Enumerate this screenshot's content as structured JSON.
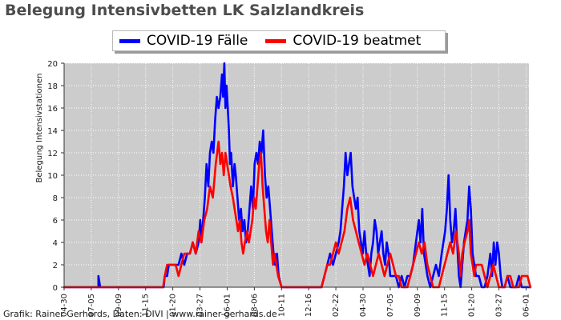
{
  "chart_data": {
    "type": "line",
    "title": "Belegung Intensivbetten LK Salzlandkreis",
    "ylabel": "Belegung Intensivstationen",
    "xlabel": "",
    "ylim": [
      0,
      20
    ],
    "yticks": [
      0,
      2,
      4,
      6,
      8,
      10,
      12,
      14,
      16,
      18,
      20
    ],
    "xticks": [
      "04-30",
      "07-05",
      "09-09",
      "11-15",
      "01-20",
      "03-27",
      "06-01",
      "08-06",
      "10-11",
      "12-16",
      "02-22",
      "04-30",
      "07-05",
      "09-09",
      "11-15",
      "01-20",
      "03-27",
      "06-01"
    ],
    "grid": true,
    "legend_position": "top",
    "plot_background": "#cccccc",
    "series": [
      {
        "name": "COVID-19 Fälle",
        "color": "#0000ff",
        "points": [
          [
            0,
            0
          ],
          [
            6,
            0
          ],
          [
            6,
            1
          ],
          [
            6.3,
            0
          ],
          [
            12,
            0
          ],
          [
            17.4,
            0
          ],
          [
            17.6,
            1
          ],
          [
            18,
            1
          ],
          [
            18.3,
            2
          ],
          [
            20,
            2
          ],
          [
            20.5,
            3
          ],
          [
            21,
            2
          ],
          [
            21.5,
            3
          ],
          [
            22,
            3
          ],
          [
            22.5,
            4
          ],
          [
            23,
            3
          ],
          [
            23.5,
            4
          ],
          [
            23.8,
            6
          ],
          [
            24,
            4
          ],
          [
            24.3,
            6
          ],
          [
            24.6,
            8
          ],
          [
            24.9,
            11
          ],
          [
            25.2,
            9
          ],
          [
            25.5,
            12
          ],
          [
            25.8,
            13
          ],
          [
            26.1,
            12
          ],
          [
            26.4,
            15
          ],
          [
            26.7,
            17
          ],
          [
            27,
            16
          ],
          [
            27.3,
            17
          ],
          [
            27.6,
            19
          ],
          [
            27.8,
            17
          ],
          [
            28,
            20
          ],
          [
            28.2,
            16
          ],
          [
            28.4,
            18
          ],
          [
            28.6,
            16
          ],
          [
            28.8,
            14
          ],
          [
            29,
            11
          ],
          [
            29.2,
            12
          ],
          [
            29.5,
            9
          ],
          [
            29.8,
            11
          ],
          [
            30,
            10
          ],
          [
            30.3,
            8
          ],
          [
            30.6,
            6
          ],
          [
            30.9,
            7
          ],
          [
            31.2,
            5
          ],
          [
            31.5,
            6
          ],
          [
            31.8,
            4
          ],
          [
            32.1,
            5
          ],
          [
            32.4,
            7
          ],
          [
            32.7,
            9
          ],
          [
            33,
            7
          ],
          [
            33.3,
            11
          ],
          [
            33.6,
            12
          ],
          [
            33.9,
            11
          ],
          [
            34.2,
            13
          ],
          [
            34.5,
            12
          ],
          [
            34.8,
            14
          ],
          [
            35.1,
            10
          ],
          [
            35.4,
            8
          ],
          [
            35.7,
            9
          ],
          [
            36,
            7
          ],
          [
            36.3,
            5
          ],
          [
            36.6,
            3
          ],
          [
            36.9,
            2
          ],
          [
            37.2,
            3
          ],
          [
            37.5,
            1
          ],
          [
            38,
            0
          ],
          [
            45,
            0
          ],
          [
            45.5,
            1
          ],
          [
            46,
            2
          ],
          [
            46.5,
            3
          ],
          [
            47,
            2
          ],
          [
            47.5,
            3
          ],
          [
            48,
            4
          ],
          [
            48.3,
            5
          ],
          [
            48.6,
            7
          ],
          [
            48.9,
            9
          ],
          [
            49.2,
            12
          ],
          [
            49.5,
            10
          ],
          [
            49.8,
            11
          ],
          [
            50.1,
            12
          ],
          [
            50.4,
            9
          ],
          [
            50.7,
            8
          ],
          [
            51,
            7
          ],
          [
            51.3,
            8
          ],
          [
            51.6,
            5
          ],
          [
            51.9,
            4
          ],
          [
            52.2,
            3
          ],
          [
            52.5,
            5
          ],
          [
            52.8,
            3
          ],
          [
            53.1,
            2
          ],
          [
            53.4,
            1
          ],
          [
            53.7,
            3
          ],
          [
            54,
            4
          ],
          [
            54.3,
            6
          ],
          [
            54.6,
            5
          ],
          [
            54.9,
            3
          ],
          [
            55.2,
            4
          ],
          [
            55.5,
            5
          ],
          [
            55.8,
            3
          ],
          [
            56.1,
            2
          ],
          [
            56.4,
            4
          ],
          [
            56.7,
            3
          ],
          [
            57,
            1
          ],
          [
            57.5,
            1
          ],
          [
            58,
            1
          ],
          [
            58.5,
            0
          ],
          [
            59,
            1
          ],
          [
            59.5,
            0
          ],
          [
            60,
            1
          ],
          [
            60.5,
            1
          ],
          [
            61,
            2
          ],
          [
            61.5,
            4
          ],
          [
            62,
            6
          ],
          [
            62.3,
            4
          ],
          [
            62.6,
            7
          ],
          [
            62.9,
            3
          ],
          [
            63.2,
            2
          ],
          [
            63.5,
            1
          ],
          [
            64,
            0
          ],
          [
            64.5,
            1
          ],
          [
            65,
            2
          ],
          [
            65.5,
            1
          ],
          [
            66,
            3
          ],
          [
            66.3,
            4
          ],
          [
            66.6,
            5
          ],
          [
            66.9,
            7
          ],
          [
            67.2,
            10
          ],
          [
            67.5,
            6
          ],
          [
            67.8,
            4
          ],
          [
            68.1,
            5
          ],
          [
            68.4,
            7
          ],
          [
            68.7,
            4
          ],
          [
            69,
            1
          ],
          [
            69.3,
            0
          ],
          [
            69.6,
            2
          ],
          [
            69.9,
            4
          ],
          [
            70.2,
            5
          ],
          [
            70.5,
            6
          ],
          [
            70.8,
            9
          ],
          [
            71.1,
            7
          ],
          [
            71.4,
            3
          ],
          [
            71.7,
            2
          ],
          [
            72,
            1
          ],
          [
            72.5,
            1
          ],
          [
            73,
            0
          ],
          [
            73.5,
            0
          ],
          [
            74,
            1
          ],
          [
            74.5,
            3
          ],
          [
            74.8,
            1
          ],
          [
            75.1,
            4
          ],
          [
            75.4,
            2
          ],
          [
            75.7,
            4
          ],
          [
            76,
            3
          ],
          [
            76.3,
            1
          ],
          [
            76.6,
            0
          ],
          [
            77,
            0
          ],
          [
            77.5,
            1
          ],
          [
            78,
            0
          ],
          [
            79,
            0
          ],
          [
            79.5,
            1
          ],
          [
            80,
            0
          ],
          [
            81.5,
            0
          ]
        ]
      },
      {
        "name": "COVID-19 beatmet",
        "color": "#ff0000",
        "points": [
          [
            0,
            0
          ],
          [
            12,
            0
          ],
          [
            17.3,
            0
          ],
          [
            17.6,
            1
          ],
          [
            18,
            2
          ],
          [
            19.5,
            2
          ],
          [
            20,
            1
          ],
          [
            20.5,
            2
          ],
          [
            21,
            3
          ],
          [
            22,
            3
          ],
          [
            22.5,
            4
          ],
          [
            23,
            3
          ],
          [
            23.5,
            5
          ],
          [
            24,
            4
          ],
          [
            24.5,
            6
          ],
          [
            25,
            7
          ],
          [
            25.5,
            9
          ],
          [
            26,
            8
          ],
          [
            26.5,
            11
          ],
          [
            27,
            13
          ],
          [
            27.3,
            11
          ],
          [
            27.6,
            12
          ],
          [
            27.9,
            10
          ],
          [
            28.2,
            12
          ],
          [
            28.5,
            11
          ],
          [
            28.8,
            10
          ],
          [
            29.1,
            9
          ],
          [
            29.5,
            8
          ],
          [
            29.8,
            7
          ],
          [
            30.1,
            6
          ],
          [
            30.4,
            5
          ],
          [
            30.7,
            6
          ],
          [
            31,
            4
          ],
          [
            31.3,
            3
          ],
          [
            31.6,
            4
          ],
          [
            32,
            5
          ],
          [
            32.3,
            4
          ],
          [
            32.6,
            5
          ],
          [
            32.9,
            6
          ],
          [
            33.2,
            8
          ],
          [
            33.5,
            7
          ],
          [
            33.8,
            9
          ],
          [
            34.1,
            11
          ],
          [
            34.4,
            12
          ],
          [
            34.7,
            9
          ],
          [
            35,
            7
          ],
          [
            35.3,
            5
          ],
          [
            35.6,
            4
          ],
          [
            35.9,
            6
          ],
          [
            36.2,
            4
          ],
          [
            36.5,
            2
          ],
          [
            36.8,
            3
          ],
          [
            37.1,
            2
          ],
          [
            37.4,
            1
          ],
          [
            38,
            0
          ],
          [
            45,
            0
          ],
          [
            45.5,
            1
          ],
          [
            46,
            2
          ],
          [
            46.5,
            2
          ],
          [
            47,
            3
          ],
          [
            47.5,
            4
          ],
          [
            48,
            3
          ],
          [
            48.5,
            4
          ],
          [
            49,
            5
          ],
          [
            49.5,
            7
          ],
          [
            50,
            8
          ],
          [
            50.5,
            6
          ],
          [
            51,
            5
          ],
          [
            51.5,
            4
          ],
          [
            52,
            3
          ],
          [
            52.5,
            2
          ],
          [
            53,
            3
          ],
          [
            53.5,
            2
          ],
          [
            54,
            1
          ],
          [
            54.5,
            2
          ],
          [
            55,
            3
          ],
          [
            55.5,
            2
          ],
          [
            56,
            1
          ],
          [
            56.5,
            2
          ],
          [
            57,
            3
          ],
          [
            57.5,
            2
          ],
          [
            58,
            1
          ],
          [
            58.5,
            1
          ],
          [
            59,
            0
          ],
          [
            60,
            0
          ],
          [
            60.5,
            1
          ],
          [
            61,
            2
          ],
          [
            61.5,
            3
          ],
          [
            62,
            4
          ],
          [
            62.5,
            3
          ],
          [
            63,
            4
          ],
          [
            63.5,
            2
          ],
          [
            64,
            1
          ],
          [
            64.5,
            0
          ],
          [
            65.5,
            0
          ],
          [
            66,
            1
          ],
          [
            66.5,
            2
          ],
          [
            67,
            3
          ],
          [
            67.5,
            4
          ],
          [
            68,
            3
          ],
          [
            68.5,
            5
          ],
          [
            69,
            3
          ],
          [
            69.3,
            1
          ],
          [
            69.6,
            3
          ],
          [
            70,
            4
          ],
          [
            70.5,
            5
          ],
          [
            70.8,
            6
          ],
          [
            71.1,
            3
          ],
          [
            71.4,
            2
          ],
          [
            71.7,
            1
          ],
          [
            72,
            2
          ],
          [
            73,
            2
          ],
          [
            73.5,
            1
          ],
          [
            74,
            0
          ],
          [
            74.5,
            1
          ],
          [
            75,
            2
          ],
          [
            75.5,
            1
          ],
          [
            76,
            0
          ],
          [
            77,
            0
          ],
          [
            77.5,
            1
          ],
          [
            78,
            1
          ],
          [
            78.5,
            0
          ],
          [
            79.5,
            0
          ],
          [
            80,
            1
          ],
          [
            81,
            1
          ],
          [
            81.5,
            0
          ]
        ]
      }
    ],
    "footer": "Grafik: Rainer Gerhards, Daten: DIVI | www.rainer-gerhards.de"
  }
}
